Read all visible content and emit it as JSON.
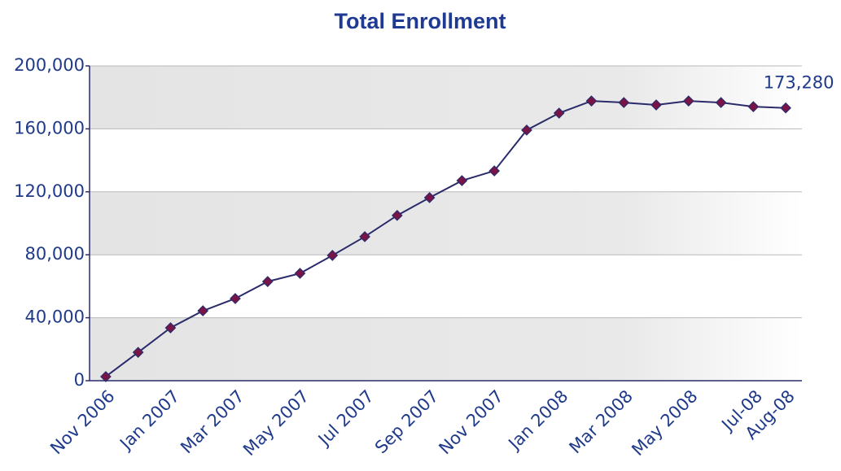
{
  "chart_data": {
    "type": "line",
    "title": "Total Enrollment",
    "categories": [
      "Nov 2006",
      null,
      "Jan 2007",
      null,
      "Mar 2007",
      null,
      "May 2007",
      null,
      "Jul 2007",
      null,
      "Sep 2007",
      null,
      "Nov 2007",
      null,
      "Jan 2008",
      null,
      "Mar 2008",
      null,
      "May 2008",
      null,
      "Jul-08",
      "Aug-08"
    ],
    "series": [
      {
        "name": "Total Enrollment",
        "color": "#2b2b6b",
        "marker_color": "#7a1446",
        "values": [
          2600,
          18000,
          33600,
          44400,
          52200,
          63000,
          68200,
          79600,
          91500,
          105000,
          116300,
          127100,
          133300,
          159200,
          170000,
          177700,
          176700,
          175200,
          177700,
          176700,
          174100,
          173280
        ],
        "value_labels": [
          null,
          null,
          null,
          null,
          null,
          null,
          null,
          null,
          null,
          null,
          null,
          null,
          null,
          null,
          null,
          null,
          null,
          null,
          null,
          null,
          null,
          "173,280"
        ]
      }
    ],
    "ylim": [
      0,
      200000
    ],
    "yticks": [
      0,
      {
        "value": 40000,
        "label": "40,000"
      },
      {
        "value": 80000,
        "label": "80,000"
      },
      {
        "value": 120000,
        "label": "120,000"
      },
      {
        "value": 160000,
        "label": "160,000"
      },
      {
        "value": 200000,
        "label": "200,000"
      }
    ],
    "grid": true
  }
}
